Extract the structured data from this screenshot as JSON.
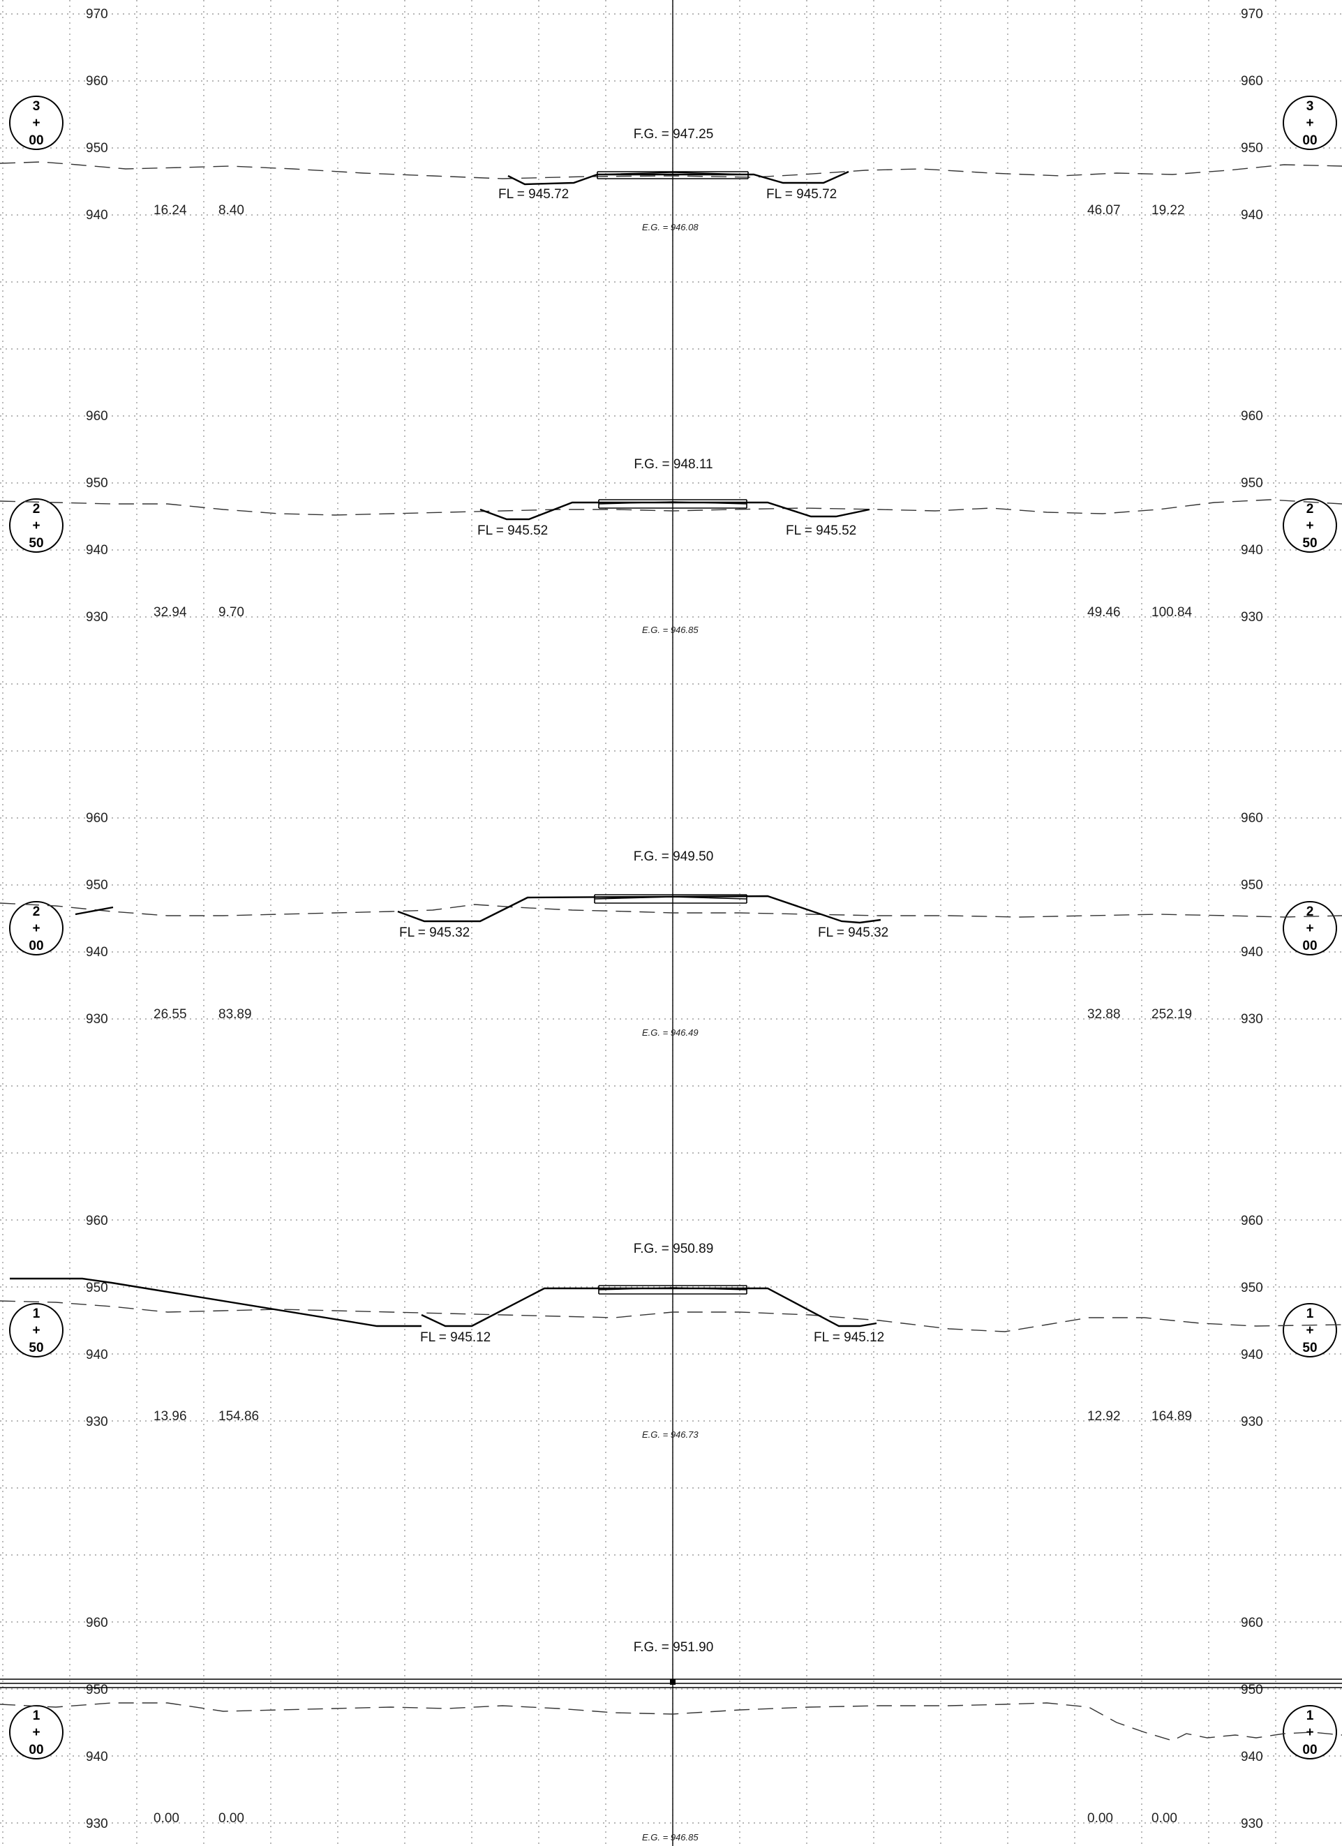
{
  "sections": [
    {
      "station": [
        "3",
        "+",
        "00"
      ],
      "fg_label": "F.G. = 947.25",
      "eg_label": "E.G. = 946.08",
      "fl_left": "FL = 945.72",
      "fl_right": "FL = 945.72",
      "areas_left": [
        "16.24",
        "8.40"
      ],
      "areas_right": [
        "46.07",
        "19.22"
      ],
      "elevations": [
        "970",
        "960",
        "950",
        "940"
      ]
    },
    {
      "station": [
        "2",
        "+",
        "50"
      ],
      "fg_label": "F.G. = 948.11",
      "eg_label": "E.G. = 946.85",
      "fl_left": "FL = 945.52",
      "fl_right": "FL = 945.52",
      "areas_left": [
        "32.94",
        "9.70"
      ],
      "areas_right": [
        "49.46",
        "100.84"
      ],
      "elevations": [
        "960",
        "950",
        "940",
        "930"
      ]
    },
    {
      "station": [
        "2",
        "+",
        "00"
      ],
      "fg_label": "F.G. = 949.50",
      "eg_label": "E.G. = 946.49",
      "fl_left": "FL = 945.32",
      "fl_right": "FL = 945.32",
      "areas_left": [
        "26.55",
        "83.89"
      ],
      "areas_right": [
        "32.88",
        "252.19"
      ],
      "elevations": [
        "960",
        "950",
        "940",
        "930"
      ]
    },
    {
      "station": [
        "1",
        "+",
        "50"
      ],
      "fg_label": "F.G. = 950.89",
      "eg_label": "E.G. = 946.73",
      "fl_left": "FL = 945.12",
      "fl_right": "FL = 945.12",
      "areas_left": [
        "13.96",
        "154.86"
      ],
      "areas_right": [
        "12.92",
        "164.89"
      ],
      "elevations": [
        "960",
        "950",
        "940",
        "930"
      ]
    },
    {
      "station": [
        "1",
        "+",
        "00"
      ],
      "fg_label": "F.G. = 951.90",
      "eg_label": "E.G. = 946.85",
      "fl_left": "",
      "fl_right": "",
      "areas_left": [
        "0.00",
        "0.00"
      ],
      "areas_right": [
        "0.00",
        "0.00"
      ],
      "elevations": [
        "960",
        "950",
        "940",
        "930"
      ]
    }
  ],
  "colors": {
    "line": "#000000",
    "grid": "#8a8a8a",
    "background": "#ffffff"
  }
}
